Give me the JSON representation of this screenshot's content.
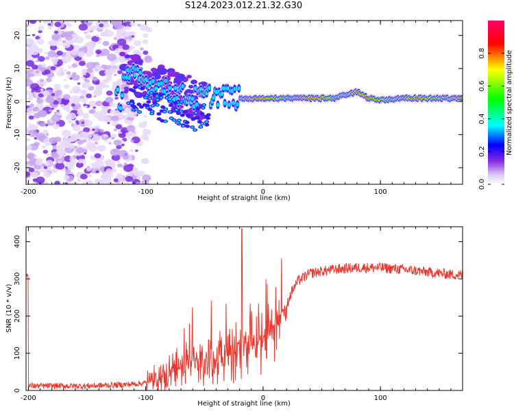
{
  "title": "S124.2023.012.21.32.G30",
  "chart_data": [
    {
      "type": "heatmap",
      "title": "S124.2023.012.21.32.G30",
      "xlabel": "Height of straight line (km)",
      "ylabel": "Frequency (Hz)",
      "xlim": [
        -202,
        170
      ],
      "ylim": [
        -25,
        24.5
      ],
      "xticks": [
        -200,
        -100,
        0,
        100
      ],
      "yticks": [
        -20,
        -10,
        0,
        10,
        20
      ],
      "colorbar": {
        "label": "Normalized spectral amplitude",
        "ticks": [
          0.0,
          0.2,
          0.4,
          0.6,
          0.8
        ],
        "range": [
          0,
          1
        ],
        "colormap": [
          "#ffffff",
          "#dcc6f4",
          "#8a2be2",
          "#0000ff",
          "#00ffff",
          "#00ff00",
          "#ffff00",
          "#ff0000",
          "#ff0066"
        ]
      },
      "ridge": {
        "description_x": [
          -120,
          -100,
          -80,
          -60,
          -40,
          -20,
          0,
          20,
          40,
          60,
          80,
          90,
          100,
          120,
          170
        ],
        "frequency_y": [
          9,
          6,
          3,
          1,
          2,
          1,
          1,
          1,
          1,
          1,
          3,
          1,
          0.5,
          1,
          1
        ]
      }
    },
    {
      "type": "line",
      "xlabel": "Height of straight line (km)",
      "ylabel": "SNR (10 * v/v)",
      "xlim": [
        -202,
        170
      ],
      "ylim": [
        0,
        440
      ],
      "xticks": [
        -200,
        -100,
        0,
        100
      ],
      "yticks": [
        0,
        100,
        200,
        300,
        400
      ],
      "color": "#e8372c",
      "x": [
        -200,
        -150,
        -120,
        -100,
        -90,
        -80,
        -70,
        -60,
        -50,
        -40,
        -30,
        -20,
        -10,
        0,
        10,
        20,
        25,
        30,
        40,
        60,
        80,
        100,
        120,
        140,
        160,
        170
      ],
      "y": [
        12,
        12,
        15,
        20,
        30,
        45,
        65,
        75,
        85,
        90,
        95,
        100,
        115,
        140,
        180,
        230,
        270,
        295,
        315,
        325,
        330,
        330,
        325,
        318,
        312,
        310
      ]
    }
  ]
}
